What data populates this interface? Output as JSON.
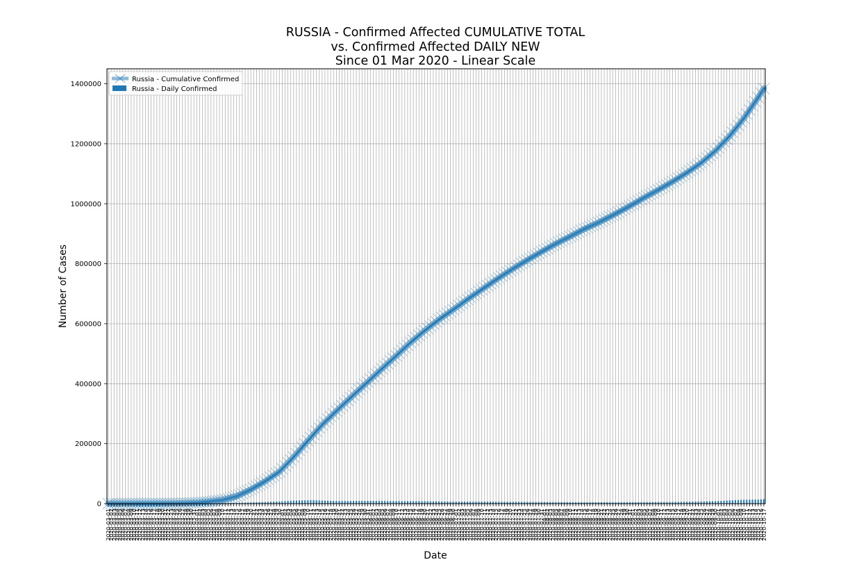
{
  "chart_data": {
    "type": "line",
    "title_lines": [
      "RUSSIA - Confirmed Affected CUMULATIVE TOTAL",
      "vs. Confirmed Affected DAILY NEW",
      "Since 01 Mar 2020 - Linear Scale"
    ],
    "xlabel": "Date",
    "ylabel": "Number of Cases",
    "x_range": [
      "2020-03-01",
      "2020-10-17"
    ],
    "ylim": [
      0,
      1450000
    ],
    "y_ticks": [
      0,
      200000,
      400000,
      600000,
      800000,
      1000000,
      1200000,
      1400000
    ],
    "grid": true,
    "legend_position": "top-left",
    "colors": {
      "cumulative": "#1f77b4",
      "daily": "#1f77b4"
    },
    "series": [
      {
        "name": "Russia - Cumulative Confirmed",
        "kind": "line",
        "marker": "x",
        "points": [
          [
            "2020-03-01",
            0
          ],
          [
            "2020-03-15",
            63
          ],
          [
            "2020-03-25",
            658
          ],
          [
            "2020-04-01",
            2777
          ],
          [
            "2020-04-05",
            6343
          ],
          [
            "2020-04-10",
            11917
          ],
          [
            "2020-04-15",
            24490
          ],
          [
            "2020-04-20",
            47121
          ],
          [
            "2020-04-25",
            74588
          ],
          [
            "2020-04-30",
            106498
          ],
          [
            "2020-05-05",
            155370
          ],
          [
            "2020-05-10",
            209688
          ],
          [
            "2020-05-15",
            262843
          ],
          [
            "2020-05-20",
            308705
          ],
          [
            "2020-05-25",
            353427
          ],
          [
            "2020-05-31",
            405843
          ],
          [
            "2020-06-05",
            449834
          ],
          [
            "2020-06-10",
            493023
          ],
          [
            "2020-06-15",
            537210
          ],
          [
            "2020-06-20",
            576952
          ],
          [
            "2020-06-25",
            613994
          ],
          [
            "2020-06-30",
            646929
          ],
          [
            "2020-07-05",
            681251
          ],
          [
            "2020-07-10",
            713936
          ],
          [
            "2020-07-15",
            746369
          ],
          [
            "2020-07-20",
            777486
          ],
          [
            "2020-07-25",
            806720
          ],
          [
            "2020-07-31",
            839981
          ],
          [
            "2020-08-05",
            866627
          ],
          [
            "2020-08-10",
            890799
          ],
          [
            "2020-08-15",
            915808
          ],
          [
            "2020-08-20",
            937321
          ],
          [
            "2020-08-25",
            961493
          ],
          [
            "2020-08-31",
            992402
          ],
          [
            "2020-09-05",
            1020310
          ],
          [
            "2020-09-10",
            1046370
          ],
          [
            "2020-09-15",
            1073849
          ],
          [
            "2020-09-20",
            1103399
          ],
          [
            "2020-09-25",
            1136048
          ],
          [
            "2020-09-30",
            1176286
          ],
          [
            "2020-10-05",
            1225889
          ],
          [
            "2020-10-10",
            1285084
          ],
          [
            "2020-10-15",
            1354163
          ],
          [
            "2020-10-17",
            1384235
          ]
        ]
      },
      {
        "name": "Russia - Daily Confirmed",
        "kind": "bar",
        "points": [
          [
            "2020-03-01",
            0
          ],
          [
            "2020-03-20",
            53
          ],
          [
            "2020-04-01",
            440
          ],
          [
            "2020-04-10",
            1786
          ],
          [
            "2020-04-20",
            4268
          ],
          [
            "2020-04-30",
            7099
          ],
          [
            "2020-05-05",
            10102
          ],
          [
            "2020-05-11",
            11656
          ],
          [
            "2020-05-20",
            8764
          ],
          [
            "2020-05-31",
            9268
          ],
          [
            "2020-06-10",
            8404
          ],
          [
            "2020-06-20",
            7972
          ],
          [
            "2020-06-30",
            6693
          ],
          [
            "2020-07-10",
            6635
          ],
          [
            "2020-07-20",
            6109
          ],
          [
            "2020-07-31",
            5482
          ],
          [
            "2020-08-10",
            4945
          ],
          [
            "2020-08-20",
            4785
          ],
          [
            "2020-08-31",
            4729
          ],
          [
            "2020-09-10",
            5363
          ],
          [
            "2020-09-20",
            6196
          ],
          [
            "2020-09-30",
            8232
          ],
          [
            "2020-10-05",
            10888
          ],
          [
            "2020-10-10",
            12846
          ],
          [
            "2020-10-15",
            13754
          ],
          [
            "2020-10-17",
            15150
          ]
        ]
      }
    ]
  }
}
